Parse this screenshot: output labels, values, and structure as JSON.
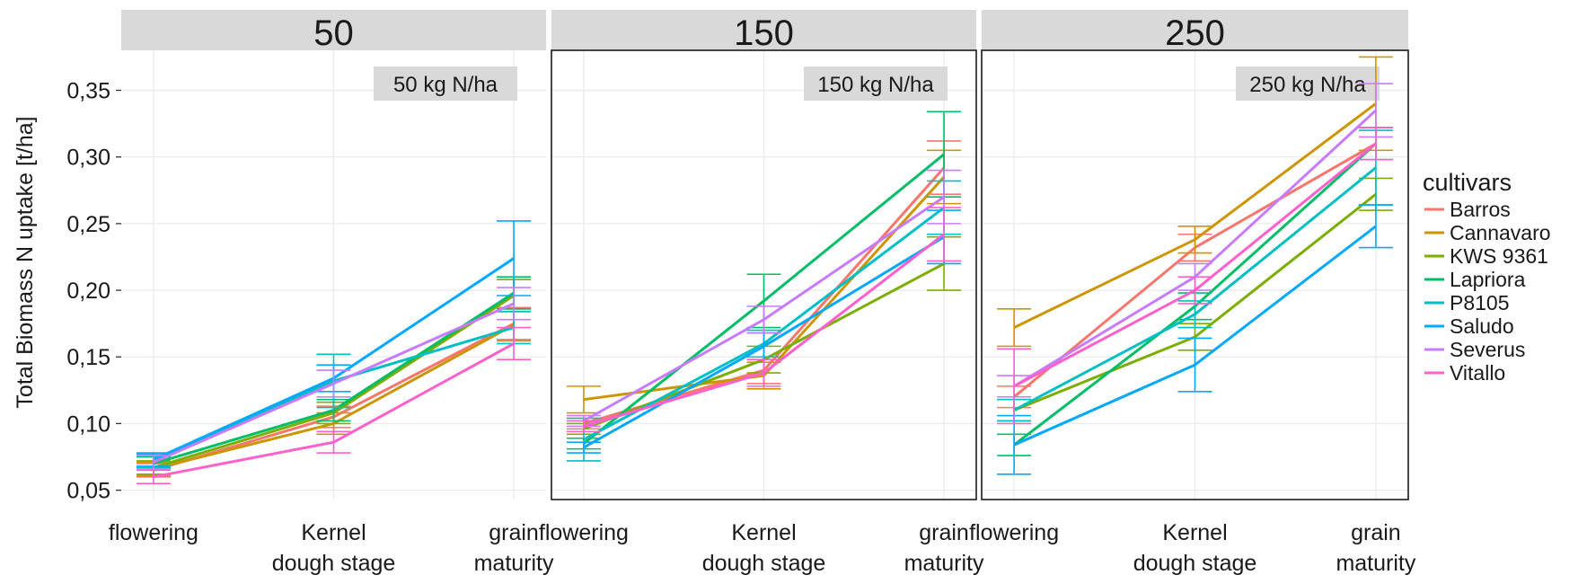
{
  "chart_data": {
    "type": "line",
    "ylabel": "Total Biomass N uptake [t/ha]",
    "xlabel": "",
    "x": [
      "flowering",
      "Kernel\ndough stage",
      "grain\nmaturity"
    ],
    "y_ticks": [
      "0,05",
      "0,10",
      "0,15",
      "0,20",
      "0,25",
      "0,30",
      "0,35"
    ],
    "y_tick_values": [
      0.05,
      0.1,
      0.15,
      0.2,
      0.25,
      0.3,
      0.35
    ],
    "ylim": [
      0.043,
      0.38
    ],
    "grid": true,
    "legend": {
      "title": "cultivars",
      "position": "right",
      "items": [
        {
          "name": "Barros",
          "color": "#F8766D"
        },
        {
          "name": "Cannavaro",
          "color": "#CD9600"
        },
        {
          "name": "KWS 9361",
          "color": "#7CAE00"
        },
        {
          "name": "Lapriora",
          "color": "#00BE67"
        },
        {
          "name": "P8105",
          "color": "#00BFC4"
        },
        {
          "name": "Saludo",
          "color": "#00A9FF"
        },
        {
          "name": "Severus",
          "color": "#C77CFF"
        },
        {
          "name": "Vitallo",
          "color": "#FF61CC"
        }
      ]
    },
    "panels": [
      {
        "strip": "50",
        "label": "50 kg N/ha",
        "series": [
          {
            "name": "Barros",
            "values": [
              0.065,
              0.105,
              0.175
            ],
            "err": [
              0.005,
              0.008,
              0.012
            ]
          },
          {
            "name": "Cannavaro",
            "values": [
              0.066,
              0.1,
              0.174
            ],
            "err": [
              0.005,
              0.008,
              0.012
            ]
          },
          {
            "name": "KWS 9361",
            "values": [
              0.067,
              0.108,
              0.196
            ],
            "err": [
              0.005,
              0.008,
              0.012
            ]
          },
          {
            "name": "Lapriora",
            "values": [
              0.07,
              0.11,
              0.198
            ],
            "err": [
              0.005,
              0.008,
              0.012
            ]
          },
          {
            "name": "P8105",
            "values": [
              0.072,
              0.132,
              0.172
            ],
            "err": [
              0.005,
              0.02,
              0.012
            ]
          },
          {
            "name": "Saludo",
            "values": [
              0.073,
              0.134,
              0.224
            ],
            "err": [
              0.005,
              0.01,
              0.028
            ]
          },
          {
            "name": "Severus",
            "values": [
              0.071,
              0.13,
              0.19
            ],
            "err": [
              0.005,
              0.01,
              0.012
            ]
          },
          {
            "name": "Vitallo",
            "values": [
              0.06,
              0.086,
              0.16
            ],
            "err": [
              0.005,
              0.008,
              0.012
            ]
          }
        ]
      },
      {
        "strip": "150",
        "label": "150 kg N/ha",
        "series": [
          {
            "name": "Barros",
            "values": [
              0.1,
              0.14,
              0.292
            ],
            "err": [
              0.004,
              0.01,
              0.02
            ]
          },
          {
            "name": "Cannavaro",
            "values": [
              0.118,
              0.136,
              0.285
            ],
            "err": [
              0.01,
              0.01,
              0.02
            ]
          },
          {
            "name": "KWS 9361",
            "values": [
              0.096,
              0.148,
              0.22
            ],
            "err": [
              0.004,
              0.01,
              0.02
            ]
          },
          {
            "name": "Lapriora",
            "values": [
              0.085,
              0.192,
              0.302
            ],
            "err": [
              0.004,
              0.02,
              0.032
            ]
          },
          {
            "name": "P8105",
            "values": [
              0.088,
              0.16,
              0.262
            ],
            "err": [
              0.016,
              0.01,
              0.02
            ]
          },
          {
            "name": "Saludo",
            "values": [
              0.082,
              0.158,
              0.24
            ],
            "err": [
              0.004,
              0.01,
              0.02
            ]
          },
          {
            "name": "Severus",
            "values": [
              0.102,
              0.178,
              0.27
            ],
            "err": [
              0.004,
              0.01,
              0.02
            ]
          },
          {
            "name": "Vitallo",
            "values": [
              0.098,
              0.138,
              0.242
            ],
            "err": [
              0.004,
              0.01,
              0.02
            ]
          }
        ]
      },
      {
        "strip": "250",
        "label": "250 kg N/ha",
        "series": [
          {
            "name": "Barros",
            "values": [
              0.12,
              0.232,
              0.31
            ],
            "err": [
              0.008,
              0.01,
              0.012
            ]
          },
          {
            "name": "Cannavaro",
            "values": [
              0.172,
              0.238,
              0.34
            ],
            "err": [
              0.014,
              0.01,
              0.035
            ]
          },
          {
            "name": "KWS 9361",
            "values": [
              0.11,
              0.165,
              0.272
            ],
            "err": [
              0.008,
              0.01,
              0.012
            ]
          },
          {
            "name": "Lapriora",
            "values": [
              0.084,
              0.188,
              0.31
            ],
            "err": [
              0.008,
              0.01,
              0.012
            ]
          },
          {
            "name": "P8105",
            "values": [
              0.11,
              0.182,
              0.292
            ],
            "err": [
              0.008,
              0.01,
              0.028
            ]
          },
          {
            "name": "Saludo",
            "values": [
              0.084,
              0.144,
              0.248
            ],
            "err": [
              0.022,
              0.02,
              0.016
            ]
          },
          {
            "name": "Severus",
            "values": [
              0.128,
              0.21,
              0.335
            ],
            "err": [
              0.008,
              0.01,
              0.02
            ]
          },
          {
            "name": "Vitallo",
            "values": [
              0.128,
              0.2,
              0.31
            ],
            "err": [
              0.028,
              0.01,
              0.012
            ]
          }
        ]
      }
    ]
  }
}
